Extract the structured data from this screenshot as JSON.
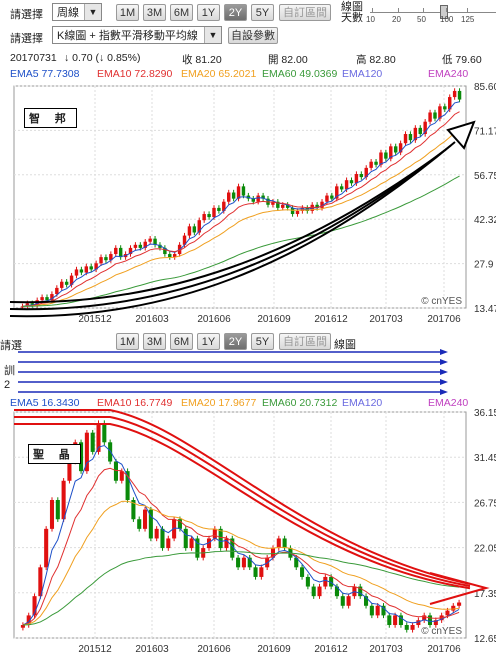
{
  "toolbar": {
    "period_label": "請選擇",
    "period_value": "周線",
    "periods": [
      "1M",
      "3M",
      "6M",
      "1Y",
      "2Y",
      "5Y"
    ],
    "active_period": "2Y",
    "custom_range": "自訂區間",
    "indicator_label": "請選擇",
    "indicator_value": "K線圖 + 指數平滑移動平均線",
    "custom_params": "自設參數",
    "days_label": "線圖天數",
    "days_ticks": [
      "10",
      "20",
      "50",
      "100",
      "125"
    ],
    "days_selected": "100"
  },
  "quote": {
    "date": "20170731",
    "change": "↓ 0.70 (↓ 0.85%)",
    "close": "收 81.20",
    "open": "開 82.00",
    "high": "高 82.80",
    "low": "低 79.60"
  },
  "ema_legend": [
    {
      "label": "EMA5 77.7308",
      "color": "#1e50c8"
    },
    {
      "label": "EMA10 72.8290",
      "color": "#e03030"
    },
    {
      "label": "EMA20 65.2021",
      "color": "#f0a020"
    },
    {
      "label": "EMA60 49.0369",
      "color": "#3a9a3a"
    },
    {
      "label": "EMA120",
      "color": "#6a6ae0"
    },
    {
      "label": "EMA240",
      "color": "#c040c0"
    }
  ],
  "overlap_toolbar": {
    "period_label": "請選",
    "periods": [
      "1M",
      "3M",
      "6M",
      "1Y",
      "2Y",
      "5Y"
    ],
    "custom_range": "自訂區間",
    "days_label": "線圖",
    "side_labels": [
      "訓",
      "2"
    ]
  },
  "ema_legend2": [
    {
      "label": "EMA5 16.3430",
      "color": "#1e50c8"
    },
    {
      "label": "EMA10 16.7749",
      "color": "#e03030"
    },
    {
      "label": "EMA20 17.9677",
      "color": "#f0a020"
    },
    {
      "label": "EMA60 20.7312",
      "color": "#3a9a3a"
    },
    {
      "label": "EMA120",
      "color": "#6a6ae0"
    },
    {
      "label": "EMA240",
      "color": "#c040c0"
    }
  ],
  "watermark": "© cnYES",
  "chart_data": [
    {
      "type": "candlestick",
      "name_tag": "智 邦",
      "x_ticks": [
        "201512",
        "201603",
        "201606",
        "201609",
        "201612",
        "201703",
        "201706"
      ],
      "y_ticks": [
        85.6,
        71.17,
        56.75,
        42.32,
        27.9,
        13.47
      ],
      "ylim": [
        13.47,
        85.6
      ],
      "close_series": [
        14,
        15,
        14.5,
        16,
        17,
        16,
        18,
        20,
        22,
        21,
        24,
        26,
        25,
        27,
        26,
        28,
        30,
        29,
        31,
        33,
        30,
        31,
        33,
        34,
        33,
        35,
        36,
        34,
        33,
        31,
        30,
        31,
        34,
        37,
        40,
        38,
        42,
        44,
        43,
        46,
        45,
        48,
        51,
        49,
        53,
        50,
        49,
        48,
        50,
        49,
        47,
        48,
        46,
        47,
        46,
        44,
        45,
        46,
        45,
        47,
        46,
        48,
        50,
        49,
        53,
        52,
        55,
        54,
        57,
        56,
        59,
        61,
        60,
        64,
        62,
        66,
        64,
        67,
        70,
        68,
        72,
        70,
        74,
        77,
        75,
        79,
        78,
        82,
        84,
        81.2
      ],
      "annotation": "three curved black arrows trending up",
      "ema_colors": [
        "#1e50c8",
        "#e03030",
        "#f0a020",
        "#3a9a3a"
      ]
    },
    {
      "type": "candlestick",
      "name_tag": "聖 晶",
      "x_ticks": [
        "201512",
        "201603",
        "201606",
        "201609",
        "201612",
        "201703",
        "201706"
      ],
      "y_ticks": [
        36.15,
        31.45,
        26.75,
        22.05,
        17.35,
        12.65
      ],
      "ylim": [
        12.65,
        36.15
      ],
      "close_series": [
        14,
        15,
        17,
        20,
        24,
        27,
        25,
        29,
        31,
        33,
        30,
        34,
        32,
        35,
        33,
        31,
        29,
        30,
        27,
        25,
        24,
        26,
        23,
        24,
        22,
        23,
        25,
        24,
        22,
        23,
        21,
        22,
        23,
        24,
        22,
        23,
        21,
        20,
        21,
        20,
        19,
        20,
        21,
        22,
        23,
        22,
        21,
        20,
        19,
        18,
        17,
        18,
        19,
        18,
        17,
        16,
        17,
        18,
        17,
        16,
        15,
        16,
        15,
        14,
        15,
        14,
        13.5,
        14,
        14.5,
        15,
        14,
        14.5,
        15,
        15.5,
        16,
        16.34
      ],
      "annotation": "three curved red arrows trending down",
      "ema_colors": [
        "#1e50c8",
        "#e03030",
        "#f0a020",
        "#3a9a3a"
      ]
    }
  ]
}
